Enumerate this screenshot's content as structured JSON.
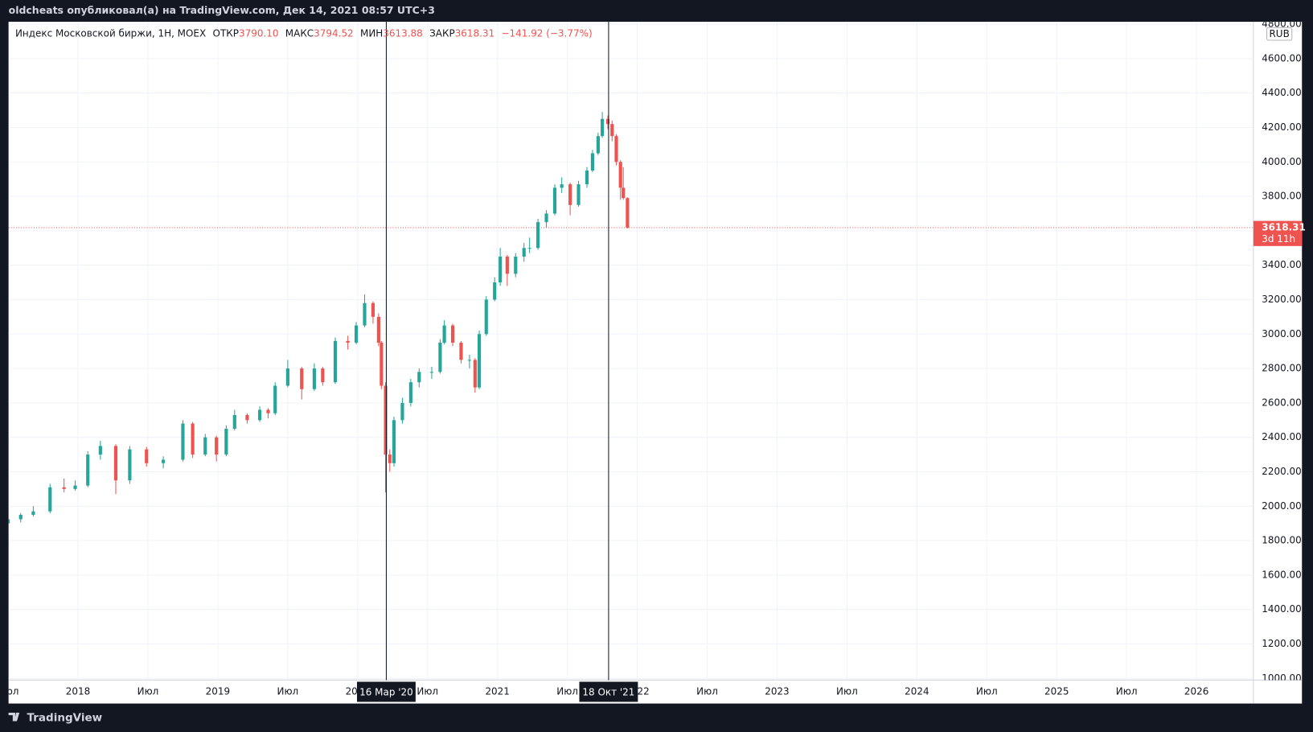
{
  "header": "oldcheats опубликовал(а) на TradingView.com, Дек 14, 2021 08:57 UTC+3",
  "footer_brand": "TradingView",
  "chart_data": {
    "type": "candlestick",
    "legend": {
      "symbol": "Индекс Московской биржи, 1Н, MOEX",
      "fields": [
        {
          "label": "ОТКР",
          "value": "3790.10"
        },
        {
          "label": "МАКС",
          "value": "3794.52"
        },
        {
          "label": "МИН",
          "value": "3613.88"
        },
        {
          "label": "ЗАКР",
          "value": "3618.31"
        }
      ],
      "change": "−141.92 (−3.77%)"
    },
    "currency": "RUB",
    "up_color": "#26a69a",
    "down_color": "#ef5350",
    "grid": true,
    "xlim": [
      2017.503,
      2026.407
    ],
    "xticks": [
      {
        "value": 2017.5,
        "label": "Июл"
      },
      2018,
      {
        "value": 2018.5,
        "label": "Июл"
      },
      2019,
      {
        "value": 2019.5,
        "label": "Июл"
      },
      2020,
      {
        "value": 2020.5,
        "label": "Июл"
      },
      2021,
      {
        "value": 2021.5,
        "label": "Июл"
      },
      2022,
      {
        "value": 2022.5,
        "label": "Июл"
      },
      2023,
      {
        "value": 2023.5,
        "label": "Июл"
      },
      2024,
      {
        "value": 2024.5,
        "label": "Июл"
      },
      2025,
      {
        "value": 2025.5,
        "label": "Июл"
      },
      2026
    ],
    "ylim": [
      990,
      4814
    ],
    "yticks": [
      {
        "value": 1000,
        "label": "1000.00"
      },
      {
        "value": 1200,
        "label": "1200.00"
      },
      {
        "value": 1400,
        "label": "1400.00"
      },
      {
        "value": 1600,
        "label": "1600.00"
      },
      {
        "value": 1800,
        "label": "1800.00"
      },
      {
        "value": 2000,
        "label": "2000.00"
      },
      {
        "value": 2200,
        "label": "2200.00"
      },
      {
        "value": 2400,
        "label": "2400.00"
      },
      {
        "value": 2600,
        "label": "2600.00"
      },
      {
        "value": 2800,
        "label": "2800.00"
      },
      {
        "value": 3000,
        "label": "3000.00"
      },
      {
        "value": 3200,
        "label": "3200.00"
      },
      {
        "value": 3400,
        "label": "3400.00"
      },
      {
        "value": 3600,
        "label": "3600.00"
      },
      {
        "value": 3800,
        "label": "3800.00"
      },
      {
        "value": 4000,
        "label": "4000.00"
      },
      {
        "value": 4200,
        "label": "4200.00"
      },
      {
        "value": 4400,
        "label": "4400.00"
      },
      {
        "value": 4600,
        "label": "4600.00"
      },
      {
        "value": 4800,
        "label": "4800.00"
      }
    ],
    "crosshairs": [
      {
        "x": 2020.205,
        "label": "16 Мар '20"
      },
      {
        "x": 2021.795,
        "label": "18 Окт '21"
      }
    ],
    "last_price": {
      "value": 3618.31,
      "countdown": "3d 11h",
      "color": "#ef5350"
    },
    "series": [
      {
        "x": [
          2017.5,
          2017.59,
          2017.68,
          2017.8,
          2017.9,
          2017.98,
          2018.07,
          2018.16,
          2018.27,
          2018.37,
          2018.49,
          2018.61,
          2018.75,
          2018.82,
          2018.91,
          2018.99,
          2019.06,
          2019.12,
          2019.21,
          2019.3,
          2019.36,
          2019.41,
          2019.5,
          2019.6,
          2019.69,
          2019.75,
          2019.84,
          2019.93,
          2019.99,
          2020.05,
          2020.11,
          2020.15,
          2020.17,
          2020.2,
          2020.23,
          2020.26,
          2020.32,
          2020.38,
          2020.44,
          2020.53,
          2020.59,
          2020.62,
          2020.68,
          2020.74,
          2020.8,
          2020.84,
          2020.87,
          2020.92,
          2020.98,
          2021.02,
          2021.07,
          2021.13,
          2021.19,
          2021.23,
          2021.29,
          2021.35,
          2021.41,
          2021.46,
          2021.52,
          2021.58,
          2021.64,
          2021.68,
          2021.72,
          2021.75,
          2021.79,
          2021.82,
          2021.85,
          2021.88,
          2021.9,
          2021.93
        ],
        "open": [
          1900,
          1924,
          1950,
          1970,
          2110,
          2100,
          2120,
          2300,
          2350,
          2150,
          2330,
          2250,
          2270,
          2480,
          2300,
          2400,
          2300,
          2450,
          2530,
          2500,
          2560,
          2540,
          2700,
          2800,
          2680,
          2800,
          2720,
          2960,
          2950,
          3050,
          3180,
          3100,
          2950,
          2700,
          2300,
          2250,
          2500,
          2600,
          2720,
          2780,
          2780,
          2950,
          3050,
          2950,
          2850,
          2850,
          2690,
          3000,
          3200,
          3300,
          3450,
          3350,
          3450,
          3500,
          3500,
          3650,
          3700,
          3850,
          3870,
          3750,
          3870,
          3950,
          4050,
          4150,
          4250,
          4220,
          4150,
          4000,
          3850,
          3790.1
        ],
        "high": [
          1935,
          1960,
          2000,
          2130,
          2160,
          2150,
          2320,
          2380,
          2360,
          2350,
          2345,
          2290,
          2500,
          2490,
          2420,
          2410,
          2470,
          2560,
          2540,
          2580,
          2570,
          2720,
          2850,
          2810,
          2830,
          2810,
          2980,
          2990,
          3070,
          3230,
          3190,
          3120,
          2960,
          2720,
          2330,
          2520,
          2630,
          2740,
          2800,
          2810,
          2970,
          3080,
          3060,
          2960,
          2880,
          2860,
          3020,
          3220,
          3330,
          3500,
          3460,
          3470,
          3530,
          3560,
          3670,
          3720,
          3870,
          3910,
          3880,
          3890,
          3970,
          4070,
          4170,
          4290,
          4270,
          4240,
          4160,
          4010,
          3970,
          3794.52
        ],
        "low": [
          1890,
          1905,
          1940,
          1960,
          2080,
          2090,
          2110,
          2270,
          2070,
          2130,
          2230,
          2220,
          2260,
          2280,
          2290,
          2260,
          2290,
          2440,
          2480,
          2490,
          2510,
          2530,
          2690,
          2620,
          2670,
          2700,
          2710,
          2910,
          2940,
          3040,
          3060,
          2930,
          2680,
          2080,
          2200,
          2230,
          2480,
          2580,
          2690,
          2740,
          2770,
          2940,
          2930,
          2830,
          2800,
          2660,
          2680,
          2990,
          3190,
          3280,
          3280,
          3330,
          3420,
          3470,
          3490,
          3620,
          3690,
          3820,
          3690,
          3740,
          3850,
          3940,
          4040,
          4140,
          4190,
          4120,
          3980,
          3780,
          3780,
          3613.88
        ],
        "close": [
          1924,
          1950,
          1970,
          2110,
          2100,
          2120,
          2300,
          2350,
          2150,
          2330,
          2250,
          2270,
          2480,
          2300,
          2400,
          2300,
          2450,
          2530,
          2500,
          2560,
          2540,
          2700,
          2800,
          2680,
          2800,
          2720,
          2960,
          2950,
          3050,
          3180,
          3100,
          2950,
          2700,
          2300,
          2250,
          2500,
          2600,
          2720,
          2780,
          2780,
          2950,
          3050,
          2950,
          2850,
          2850,
          2690,
          3000,
          3200,
          3300,
          3450,
          3350,
          3450,
          3500,
          3500,
          3650,
          3700,
          3850,
          3870,
          3750,
          3870,
          3950,
          4050,
          4150,
          4250,
          4220,
          4150,
          4000,
          3850,
          3790,
          3618.31
        ]
      }
    ]
  }
}
